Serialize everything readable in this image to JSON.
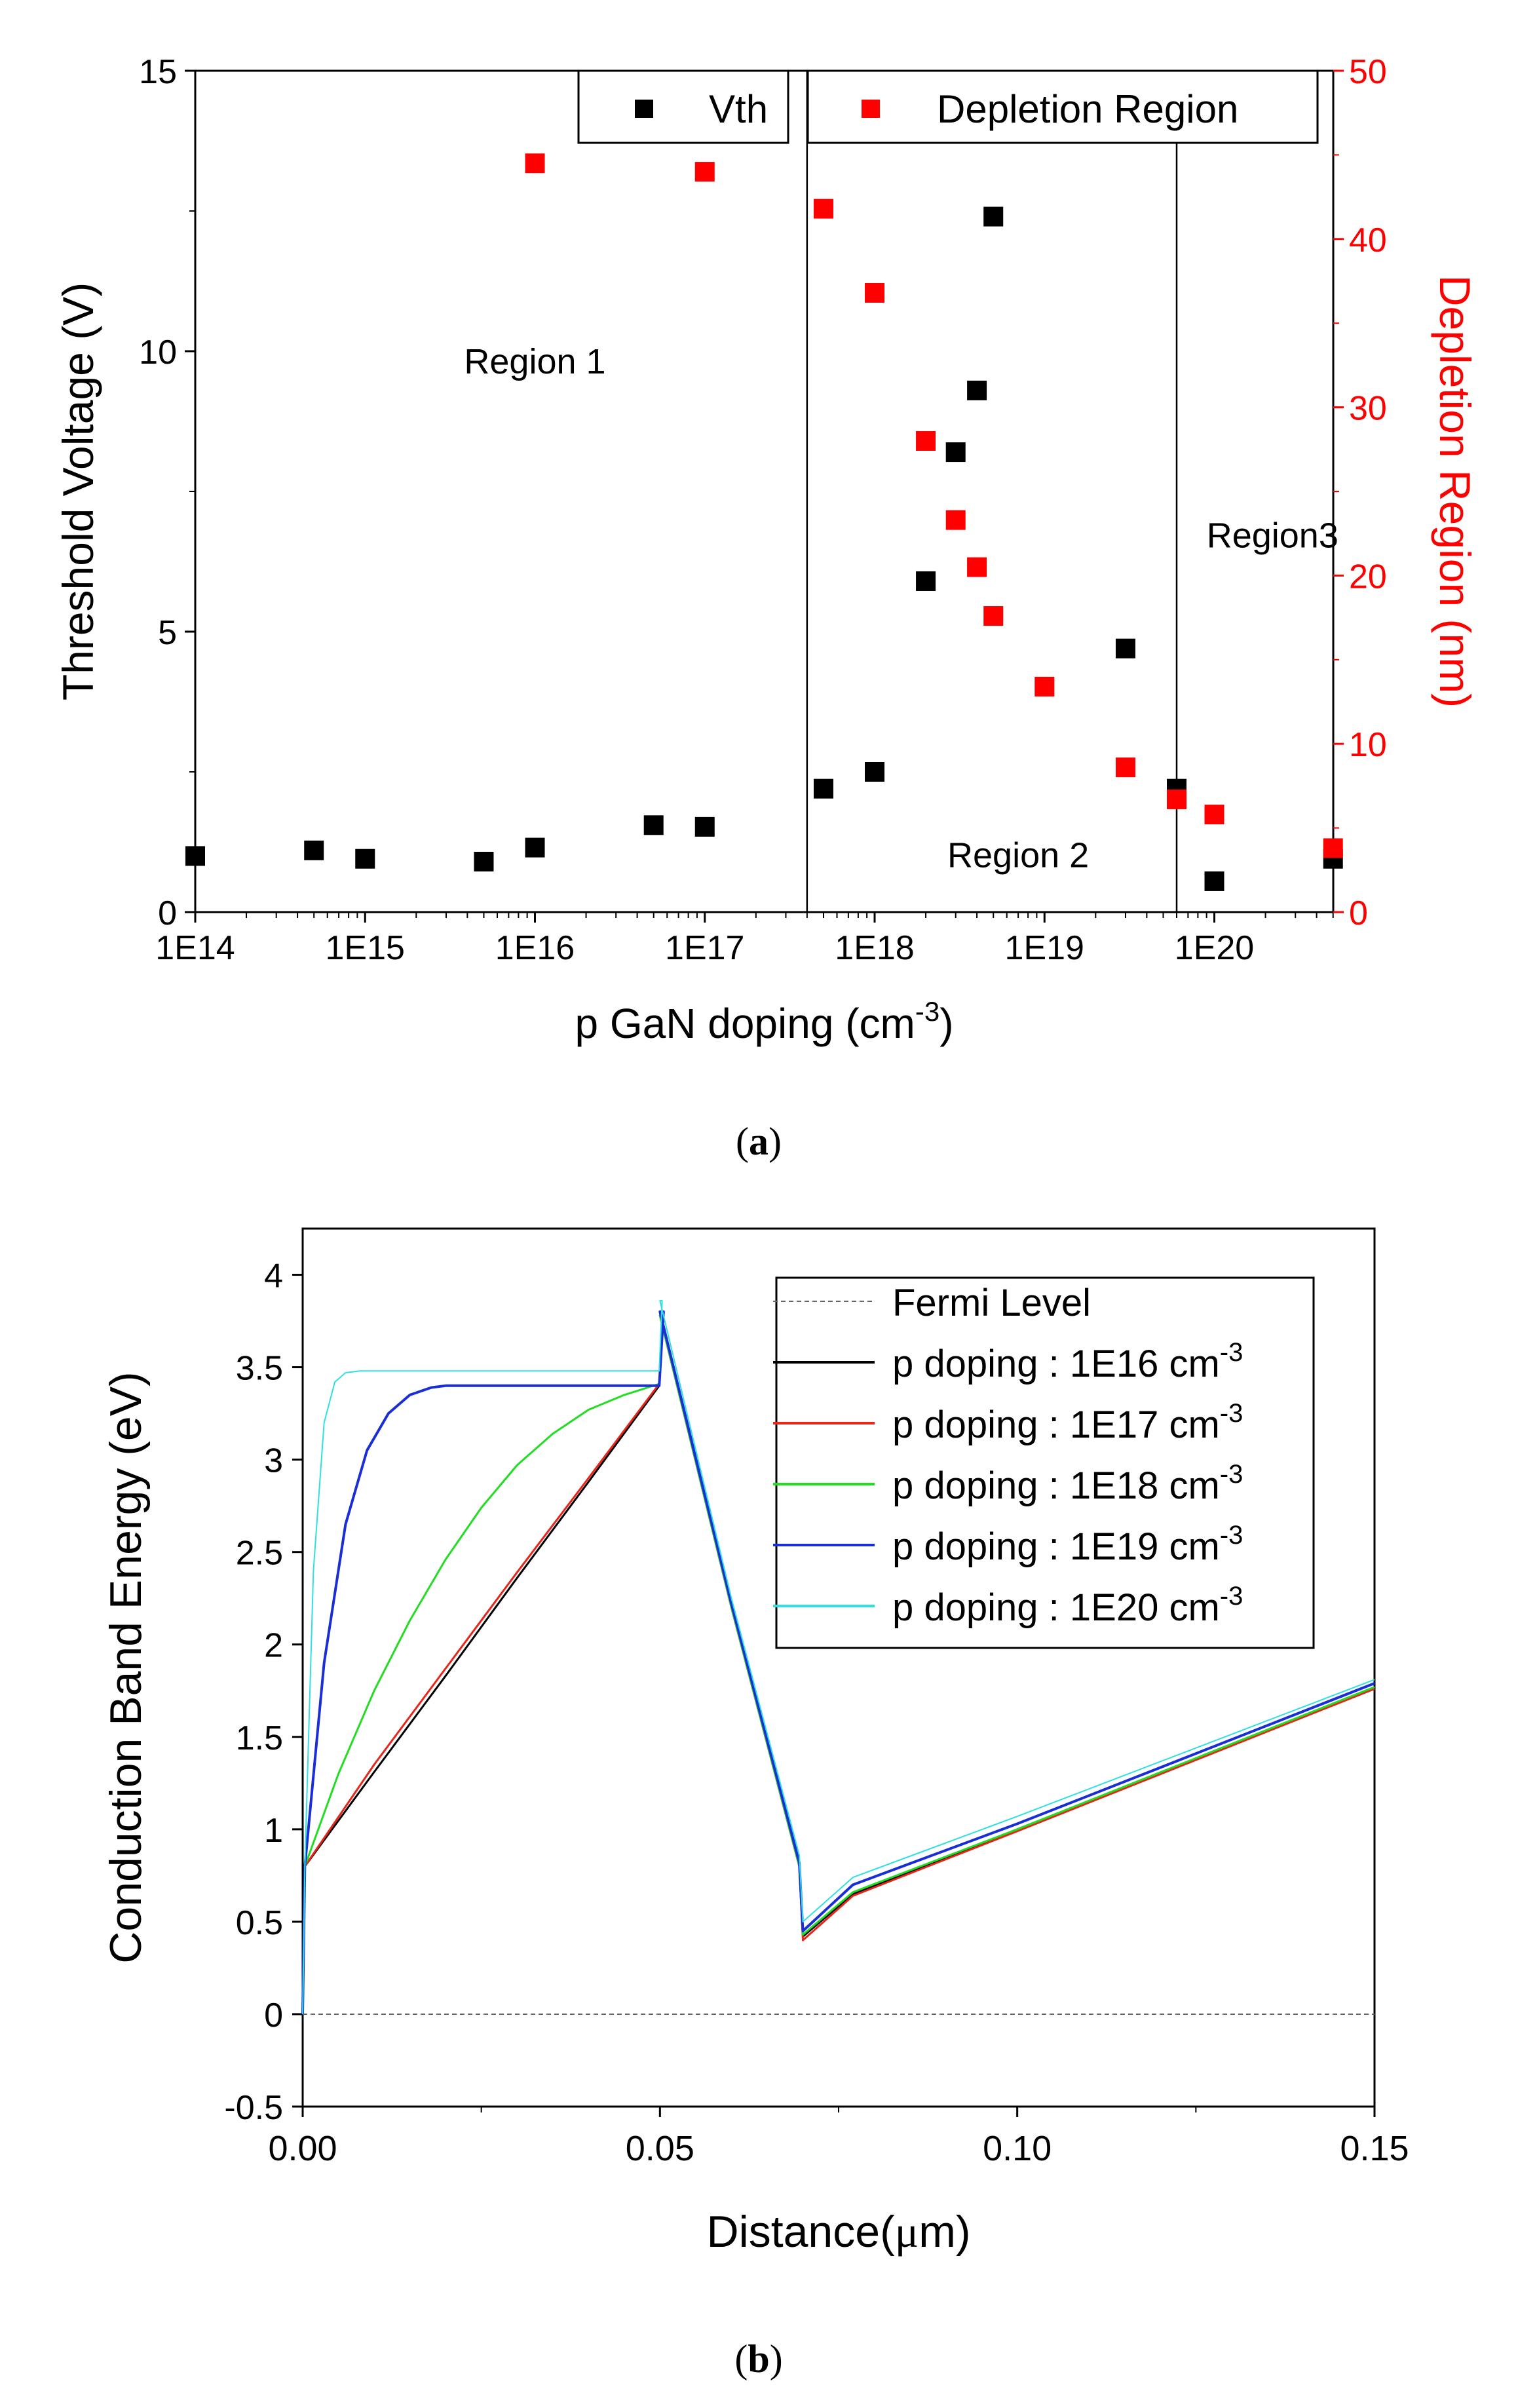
{
  "chart_data": [
    {
      "type": "scatter",
      "panel_label": "a",
      "panel_label_open": "(",
      "panel_label_close": ")",
      "xscale": "log",
      "xlabel": "p GaN doping (cm",
      "xlabel_sup": "-3",
      "xlabel_close": ")",
      "ylabel": "Threshold Voltage (V)",
      "ylabel_right": "Depletion Region (nm)",
      "xlim_exp": [
        14,
        20.7
      ],
      "ylim": [
        0,
        15
      ],
      "ylim_right": [
        0,
        50
      ],
      "x_ticks": [
        100000000000000.0,
        1000000000000000.0,
        1e+16,
        1e+17,
        1e+18,
        1e+19,
        1e+20
      ],
      "x_tick_labels": [
        "1E14",
        "1E15",
        "1E16",
        "1E17",
        "1E18",
        "1E19",
        "1E20"
      ],
      "y_ticks": [
        0,
        5,
        10,
        15
      ],
      "y_tick_labels": [
        "0",
        "5",
        "10",
        "15"
      ],
      "y_right_ticks": [
        0,
        10,
        20,
        30,
        40,
        50
      ],
      "y_right_tick_labels": [
        "0",
        "10",
        "20",
        "30",
        "40",
        "50"
      ],
      "region_boundaries": [
        4e+17,
        6e+19
      ],
      "region_labels": [
        {
          "text": "Region 1",
          "x": 1e+16,
          "y": 9.6
        },
        {
          "text": "Region 2",
          "x": 7e+18,
          "y": 0.8
        },
        {
          "text": "Region3",
          "x": 2.2e+20,
          "y": 6.5
        }
      ],
      "series": [
        {
          "name": "Vth",
          "axis": "left",
          "color": "#000000",
          "x": [
            100000000000000.0,
            500000000000000.0,
            1000000000000000.0,
            5000000000000000.0,
            1e+16,
            5e+16,
            1e+17,
            5e+17,
            1e+18,
            2e+18,
            3e+18,
            4e+18,
            5e+18,
            3e+19,
            6e+19,
            1e+20,
            5e+20
          ],
          "y": [
            1.0,
            1.1,
            0.95,
            0.9,
            1.15,
            1.55,
            1.52,
            2.2,
            2.5,
            5.9,
            8.2,
            9.3,
            12.4,
            4.7,
            2.2,
            0.55,
            0.95
          ]
        },
        {
          "name": "Depletion Region",
          "axis": "right",
          "color": "#ff0000",
          "x": [
            1e+16,
            1e+17,
            5e+17,
            1e+18,
            2e+18,
            3e+18,
            4e+18,
            5e+18,
            1e+19,
            3e+19,
            6e+19,
            1e+20,
            5e+20
          ],
          "y": [
            44.5,
            44.0,
            41.8,
            36.8,
            28.0,
            23.3,
            20.5,
            17.6,
            13.4,
            8.6,
            6.7,
            5.8,
            3.8
          ]
        }
      ]
    },
    {
      "type": "line",
      "panel_label": "b",
      "panel_label_open": "(",
      "panel_label_close": ")",
      "xlabel": "Distance(",
      "xlabel_mu": "μ",
      "xlabel_unit": "m)",
      "ylabel": "Conduction Band Energy (eV)",
      "xlim": [
        0,
        0.15
      ],
      "ylim": [
        -0.5,
        4.25
      ],
      "x_ticks": [
        0,
        0.05,
        0.1,
        0.15
      ],
      "x_tick_labels": [
        "0.00",
        "0.05",
        "0.10",
        "0.15"
      ],
      "y_ticks": [
        -0.5,
        0,
        0.5,
        1,
        1.5,
        2,
        2.5,
        3,
        3.5,
        4
      ],
      "y_tick_labels": [
        "-0.5",
        "0",
        "0.5",
        "1",
        "1.5",
        "2",
        "2.5",
        "3",
        "3.5",
        "4"
      ],
      "fermi": {
        "name": "Fermi Level",
        "value": 0,
        "color": "#666666"
      },
      "series": [
        {
          "name_prefix": "p doping : 1E16 cm",
          "name_sup": "-3",
          "color": "#000000",
          "width": 3,
          "x": [
            0,
            0.0003,
            0.01,
            0.02,
            0.03,
            0.04,
            0.0499,
            0.0505,
            0.05,
            0.06,
            0.0695,
            0.07,
            0.077,
            0.1,
            0.15
          ],
          "y": [
            0,
            0.8,
            1.31,
            1.83,
            2.36,
            2.88,
            3.4,
            3.78,
            3.78,
            2.2,
            0.8,
            0.42,
            0.65,
            1.0,
            1.76
          ]
        },
        {
          "name_prefix": "p doping : 1E17 cm",
          "name_sup": "-3",
          "color": "#e8251b",
          "width": 3,
          "x": [
            0,
            0.0003,
            0.01,
            0.02,
            0.03,
            0.04,
            0.0499,
            0.0505,
            0.05,
            0.06,
            0.0695,
            0.07,
            0.077,
            0.1,
            0.15
          ],
          "y": [
            0,
            0.8,
            1.35,
            1.87,
            2.39,
            2.9,
            3.41,
            3.78,
            3.78,
            2.2,
            0.8,
            0.4,
            0.64,
            0.99,
            1.76
          ]
        },
        {
          "name_prefix": "p doping : 1E18 cm",
          "name_sup": "-3",
          "color": "#22dd22",
          "width": 3,
          "x": [
            0,
            0.0003,
            0.005,
            0.01,
            0.015,
            0.02,
            0.025,
            0.03,
            0.035,
            0.04,
            0.045,
            0.0499,
            0.0505,
            0.05,
            0.06,
            0.0695,
            0.07,
            0.077,
            0.1,
            0.15
          ],
          "y": [
            0,
            0.8,
            1.3,
            1.75,
            2.13,
            2.46,
            2.74,
            2.97,
            3.14,
            3.27,
            3.35,
            3.41,
            3.78,
            3.78,
            2.2,
            0.8,
            0.43,
            0.66,
            1.0,
            1.77
          ]
        },
        {
          "name_prefix": "p doping : 1E19 cm",
          "name_sup": "-3",
          "color": "#1a2ed8",
          "width": 4,
          "x": [
            0,
            0.0003,
            0.003,
            0.006,
            0.009,
            0.012,
            0.015,
            0.018,
            0.02,
            0.03,
            0.04,
            0.0499,
            0.0505,
            0.05,
            0.06,
            0.0695,
            0.07,
            0.077,
            0.1,
            0.15
          ],
          "y": [
            0,
            0.8,
            1.9,
            2.65,
            3.05,
            3.25,
            3.35,
            3.39,
            3.4,
            3.4,
            3.4,
            3.4,
            3.8,
            3.8,
            2.22,
            0.82,
            0.45,
            0.7,
            1.03,
            1.79
          ]
        },
        {
          "name_prefix": "p doping : 1E20 cm",
          "name_sup": "-3",
          "color": "#2fe0e0",
          "width": 2,
          "x": [
            0,
            0.0003,
            0.0015,
            0.003,
            0.0045,
            0.006,
            0.008,
            0.02,
            0.04,
            0.0499,
            0.0503,
            0.05,
            0.06,
            0.0695,
            0.07,
            0.077,
            0.1,
            0.15
          ],
          "y": [
            0,
            0.8,
            2.4,
            3.2,
            3.42,
            3.47,
            3.48,
            3.48,
            3.48,
            3.48,
            3.86,
            3.86,
            2.25,
            0.86,
            0.5,
            0.74,
            1.07,
            1.81
          ]
        }
      ]
    }
  ]
}
